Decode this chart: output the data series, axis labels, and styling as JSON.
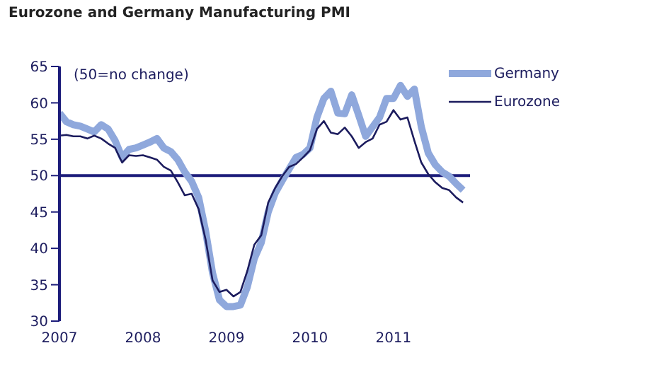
{
  "chart_data": {
    "type": "line",
    "title": "Eurozone and Germany Manufacturing PMI",
    "annotations": [
      "(50=no change)"
    ],
    "x": [
      "2007-01",
      "2007-02",
      "2007-03",
      "2007-04",
      "2007-05",
      "2007-06",
      "2007-07",
      "2007-08",
      "2007-09",
      "2007-10",
      "2007-11",
      "2007-12",
      "2008-01",
      "2008-02",
      "2008-03",
      "2008-04",
      "2008-05",
      "2008-06",
      "2008-07",
      "2008-08",
      "2008-09",
      "2008-10",
      "2008-11",
      "2008-12",
      "2009-01",
      "2009-02",
      "2009-03",
      "2009-04",
      "2009-05",
      "2009-06",
      "2009-07",
      "2009-08",
      "2009-09",
      "2009-10",
      "2009-11",
      "2009-12",
      "2010-01",
      "2010-02",
      "2010-03",
      "2010-04",
      "2010-05",
      "2010-06",
      "2010-07",
      "2010-08",
      "2010-09",
      "2010-10",
      "2010-11",
      "2010-12",
      "2011-01",
      "2011-02",
      "2011-03",
      "2011-04",
      "2011-05",
      "2011-06",
      "2011-07",
      "2011-08",
      "2011-09",
      "2011-10",
      "2011-11"
    ],
    "series": [
      {
        "name": "Germany",
        "color": "#8fa8dc",
        "values": [
          58.6,
          57.4,
          57.0,
          56.8,
          56.4,
          56.0,
          57.0,
          56.4,
          54.8,
          52.5,
          53.6,
          53.8,
          54.2,
          54.6,
          55.1,
          53.8,
          53.3,
          52.2,
          50.5,
          49.2,
          47.0,
          42.4,
          36.6,
          32.9,
          32.0,
          32.0,
          32.2,
          34.7,
          38.6,
          40.8,
          45.0,
          47.6,
          49.3,
          50.9,
          52.5,
          52.9,
          53.8,
          58.0,
          60.6,
          61.6,
          58.6,
          58.5,
          61.1,
          58.3,
          55.4,
          56.7,
          58.0,
          60.6,
          60.6,
          62.4,
          60.9,
          61.9,
          56.7,
          53.1,
          51.5,
          50.5,
          49.9,
          48.9,
          48.0
        ]
      },
      {
        "name": "Eurozone",
        "color": "#1c1c5e",
        "values": [
          55.5,
          55.6,
          55.4,
          55.4,
          55.1,
          55.5,
          55.1,
          54.4,
          53.8,
          51.8,
          52.8,
          52.7,
          52.8,
          52.5,
          52.2,
          51.2,
          50.7,
          49.1,
          47.3,
          47.5,
          45.4,
          41.2,
          35.6,
          34.0,
          34.3,
          33.4,
          34.0,
          36.9,
          40.5,
          41.8,
          46.3,
          48.3,
          49.9,
          51.2,
          51.6,
          52.5,
          53.5,
          56.4,
          57.5,
          55.9,
          55.7,
          56.6,
          55.4,
          53.8,
          54.6,
          55.1,
          57.0,
          57.4,
          59.0,
          57.7,
          58.0,
          54.8,
          51.8,
          50.2,
          49.1,
          48.3,
          48.0,
          47.0,
          46.3
        ]
      }
    ],
    "xlim": [
      "2007-01",
      "2011-12"
    ],
    "xticks": [
      "2007",
      "2008",
      "2009",
      "2010",
      "2011"
    ],
    "ylim": [
      30,
      65
    ],
    "yticks": [
      30,
      35,
      40,
      45,
      50,
      55,
      60,
      65
    ],
    "ref_lines": [
      {
        "axis": "y",
        "value": 50,
        "color": "#1c1c7a"
      }
    ],
    "grid": false,
    "legend": "top right"
  }
}
